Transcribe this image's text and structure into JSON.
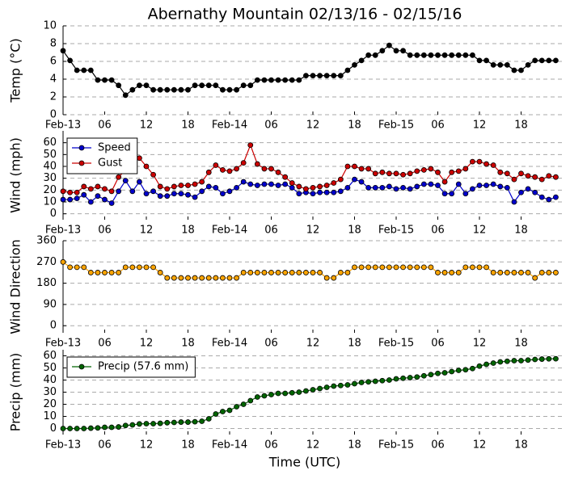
{
  "chart_data": [
    {
      "type": "line",
      "title": "Abernathy Mountain 02/13/16 - 02/15/16",
      "ylabel": "Temp (°C)",
      "categories": [
        "Feb-13",
        null,
        null,
        null,
        null,
        null,
        "06",
        null,
        null,
        null,
        null,
        null,
        "12",
        null,
        null,
        null,
        null,
        null,
        "18",
        null,
        null,
        null,
        null,
        null,
        "Feb-14",
        null,
        null,
        null,
        null,
        null,
        "06",
        null,
        null,
        null,
        null,
        null,
        "12",
        null,
        null,
        null,
        null,
        null,
        "18",
        null,
        null,
        null,
        null,
        null,
        "Feb-15",
        null,
        null,
        null,
        null,
        null,
        "06",
        null,
        null,
        null,
        null,
        null,
        "12",
        null,
        null,
        null,
        null,
        null,
        "18",
        null,
        null,
        null,
        null,
        null
      ],
      "series": [
        {
          "color": "#000000",
          "values": [
            7.2,
            6.1,
            5,
            5,
            5,
            3.9,
            3.9,
            3.9,
            3.3,
            2.2,
            2.8,
            3.3,
            3.3,
            2.8,
            2.8,
            2.8,
            2.8,
            2.8,
            2.8,
            3.3,
            3.3,
            3.3,
            3.3,
            2.8,
            2.8,
            2.8,
            3.3,
            3.3,
            3.9,
            3.9,
            3.9,
            3.9,
            3.9,
            3.9,
            3.9,
            4.4,
            4.4,
            4.4,
            4.4,
            4.4,
            4.4,
            5,
            5.6,
            6.1,
            6.7,
            6.7,
            7.2,
            7.8,
            7.2,
            7.2,
            6.7,
            6.7,
            6.7,
            6.7,
            6.7,
            6.7,
            6.7,
            6.7,
            6.7,
            6.7,
            6.1,
            6.1,
            5.6,
            5.6,
            5.6,
            5,
            5,
            5.6,
            6.1,
            6.1,
            6.1,
            6.1
          ]
        }
      ],
      "ylim": [
        0,
        10
      ],
      "yticks": [
        0,
        2,
        4,
        6,
        8,
        10
      ],
      "grid": true
    },
    {
      "type": "line",
      "ylabel": "Wind (mph)",
      "legend": "upper left",
      "categories": [
        "Feb-13",
        null,
        null,
        null,
        null,
        null,
        "06",
        null,
        null,
        null,
        null,
        null,
        "12",
        null,
        null,
        null,
        null,
        null,
        "18",
        null,
        null,
        null,
        null,
        null,
        "Feb-14",
        null,
        null,
        null,
        null,
        null,
        "06",
        null,
        null,
        null,
        null,
        null,
        "12",
        null,
        null,
        null,
        null,
        null,
        "18",
        null,
        null,
        null,
        null,
        null,
        "Feb-15",
        null,
        null,
        null,
        null,
        null,
        "06",
        null,
        null,
        null,
        null,
        null,
        "12",
        null,
        null,
        null,
        null,
        null,
        "18",
        null,
        null,
        null,
        null,
        null
      ],
      "series": [
        {
          "name": "Speed",
          "color": "#0000cc",
          "values": [
            12,
            12,
            13,
            16,
            10,
            15,
            12,
            9,
            19,
            28,
            19,
            27,
            17,
            19,
            15,
            15,
            17,
            17,
            16,
            14,
            19,
            23,
            22,
            17,
            19,
            22,
            27,
            25,
            24,
            25,
            25,
            24,
            25,
            22,
            17,
            18,
            17,
            18,
            18,
            18,
            19,
            22,
            29,
            27,
            22,
            22,
            22,
            23,
            21,
            22,
            21,
            23,
            25,
            25,
            24,
            17,
            17,
            25,
            17,
            21,
            24,
            24,
            25,
            23,
            22,
            10,
            18,
            21,
            18,
            14,
            12,
            14
          ]
        },
        {
          "name": "Gust",
          "color": "#cc0000",
          "values": [
            19,
            18,
            18,
            23,
            21,
            23,
            21,
            19,
            31,
            37,
            47,
            47,
            40,
            33,
            23,
            21,
            23,
            24,
            24,
            25,
            27,
            35,
            41,
            37,
            36,
            38,
            43,
            58,
            42,
            38,
            38,
            35,
            31,
            26,
            23,
            21,
            22,
            23,
            24,
            26,
            29,
            40,
            40,
            38,
            38,
            34,
            35,
            34,
            34,
            33,
            34,
            36,
            37,
            38,
            35,
            27,
            35,
            36,
            38,
            44,
            44,
            42,
            41,
            35,
            34,
            29,
            34,
            32,
            31,
            29,
            32,
            31
          ]
        }
      ],
      "ylim": [
        -5,
        70
      ],
      "yticks": [
        0,
        10,
        20,
        30,
        40,
        50,
        60
      ],
      "grid": true
    },
    {
      "type": "line",
      "ylabel": "Wind Direction",
      "categories": [
        "Feb-13",
        null,
        null,
        null,
        null,
        null,
        "06",
        null,
        null,
        null,
        null,
        null,
        "12",
        null,
        null,
        null,
        null,
        null,
        "18",
        null,
        null,
        null,
        null,
        null,
        "Feb-14",
        null,
        null,
        null,
        null,
        null,
        "06",
        null,
        null,
        null,
        null,
        null,
        "12",
        null,
        null,
        null,
        null,
        null,
        "18",
        null,
        null,
        null,
        null,
        null,
        "Feb-15",
        null,
        null,
        null,
        null,
        null,
        "06",
        null,
        null,
        null,
        null,
        null,
        "12",
        null,
        null,
        null,
        null,
        null,
        "18",
        null,
        null,
        null,
        null,
        null
      ],
      "series": [
        {
          "color": "#ffa500",
          "values": [
            270,
            247.5,
            247.5,
            247.5,
            225,
            225,
            225,
            225,
            225,
            247.5,
            247.5,
            247.5,
            247.5,
            247.5,
            225,
            202.5,
            202.5,
            202.5,
            202.5,
            202.5,
            202.5,
            202.5,
            202.5,
            202.5,
            202.5,
            202.5,
            225,
            225,
            225,
            225,
            225,
            225,
            225,
            225,
            225,
            225,
            225,
            225,
            202.5,
            202.5,
            225,
            225,
            247.5,
            247.5,
            247.5,
            247.5,
            247.5,
            247.5,
            247.5,
            247.5,
            247.5,
            247.5,
            247.5,
            247.5,
            225,
            225,
            225,
            225,
            247.5,
            247.5,
            247.5,
            247.5,
            225,
            225,
            225,
            225,
            225,
            225,
            202.5,
            225,
            225,
            225
          ]
        }
      ],
      "ylim": [
        -30,
        360
      ],
      "yticks": [
        0,
        90,
        180,
        270,
        360
      ],
      "grid": true
    },
    {
      "type": "line",
      "ylabel": "Precip (mm)",
      "xlabel": "Time (UTC)",
      "legend": "upper left",
      "categories": [
        "Feb-13",
        null,
        null,
        null,
        null,
        null,
        "06",
        null,
        null,
        null,
        null,
        null,
        "12",
        null,
        null,
        null,
        null,
        null,
        "18",
        null,
        null,
        null,
        null,
        null,
        "Feb-14",
        null,
        null,
        null,
        null,
        null,
        "06",
        null,
        null,
        null,
        null,
        null,
        "12",
        null,
        null,
        null,
        null,
        null,
        "18",
        null,
        null,
        null,
        null,
        null,
        "Feb-15",
        null,
        null,
        null,
        null,
        null,
        "06",
        null,
        null,
        null,
        null,
        null,
        "12",
        null,
        null,
        null,
        null,
        null,
        "18",
        null,
        null,
        null,
        null,
        null
      ],
      "series": [
        {
          "name": "Precip (57.6 mm)",
          "color": "#006400",
          "values": [
            0,
            0,
            0,
            0,
            0.3,
            0.5,
            1,
            1,
            1.3,
            2.5,
            3,
            3.8,
            4,
            4,
            4.3,
            4.8,
            5,
            5.3,
            5.3,
            5.6,
            6,
            8,
            12,
            14,
            15,
            18,
            20,
            23,
            26,
            27,
            28,
            29,
            29,
            29.5,
            30,
            31,
            32,
            33,
            34,
            35,
            35.5,
            36,
            37,
            38,
            38.5,
            39,
            39.5,
            40,
            41,
            41.5,
            42,
            42.5,
            43.5,
            44.5,
            45.5,
            46,
            47,
            48,
            48.5,
            49.5,
            51.5,
            53,
            54,
            55,
            55.5,
            56,
            56,
            56.5,
            57,
            57.3,
            57.5,
            57.6
          ]
        }
      ],
      "ylim": [
        -5,
        65
      ],
      "yticks": [
        0,
        10,
        20,
        30,
        40,
        50,
        60
      ],
      "grid": true
    }
  ]
}
